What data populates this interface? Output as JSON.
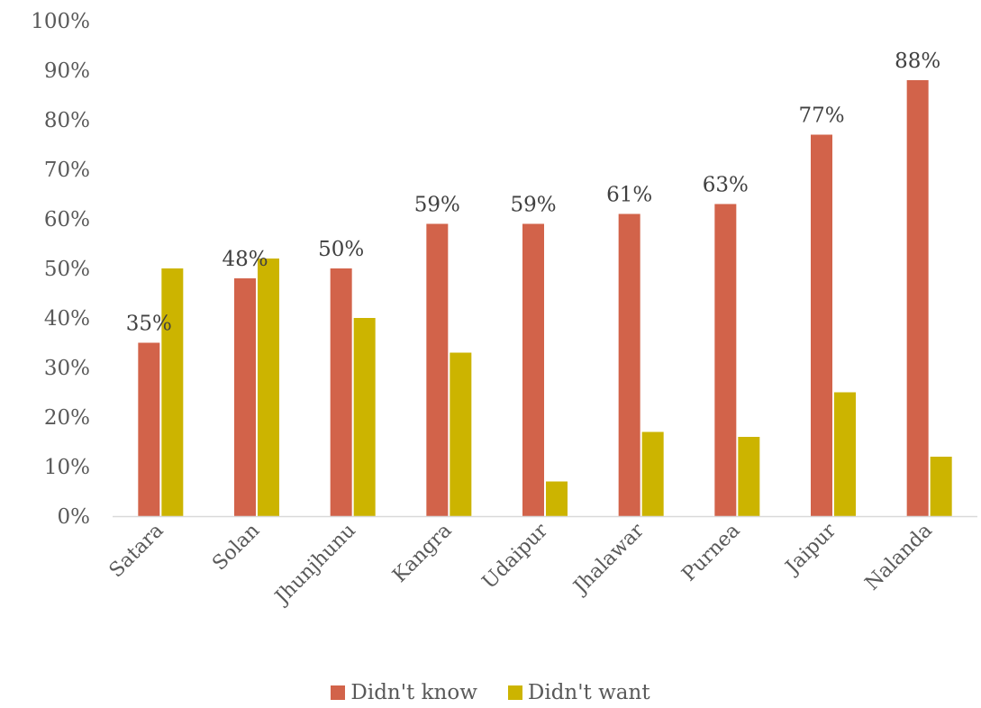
{
  "chart_data": {
    "type": "bar",
    "categories": [
      "Satara",
      "Solan",
      "Jhunjhunu",
      "Kangra",
      "Udaipur",
      "Jhalawar",
      "Purnea",
      "Jaipur",
      "Nalanda"
    ],
    "series": [
      {
        "name": "Didn't know",
        "color": "#D2634A",
        "values": [
          35,
          48,
          50,
          59,
          59,
          61,
          63,
          77,
          88
        ],
        "labels": [
          "35%",
          "48%",
          "50%",
          "59%",
          "59%",
          "61%",
          "63%",
          "77%",
          "88%"
        ]
      },
      {
        "name": "Didn't want",
        "color": "#CCB400",
        "values": [
          50,
          52,
          40,
          33,
          7,
          17,
          16,
          25,
          12
        ]
      }
    ],
    "yticks": [
      "0%",
      "10%",
      "20%",
      "30%",
      "40%",
      "50%",
      "60%",
      "70%",
      "80%",
      "90%",
      "100%"
    ],
    "ylim": [
      0,
      100
    ],
    "grid": false,
    "legend": "bottom",
    "title": "",
    "xlabel": "",
    "ylabel": ""
  }
}
